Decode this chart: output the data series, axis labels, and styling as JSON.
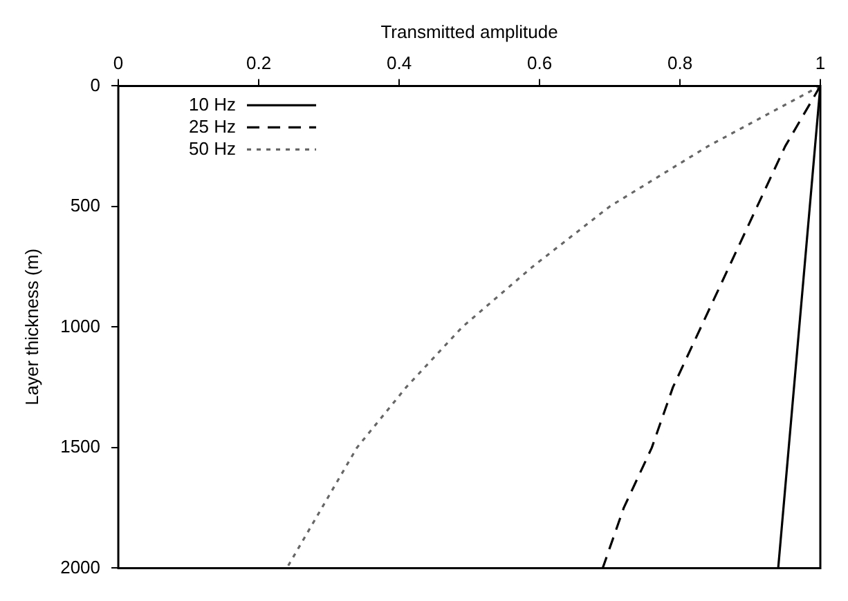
{
  "chart_data": {
    "type": "line",
    "xlabel": "Transmitted amplitude",
    "ylabel": "Layer thickness (m)",
    "xlim": [
      0,
      1
    ],
    "xticks": [
      0,
      0.2,
      0.4,
      0.6,
      0.8,
      1
    ],
    "ylim": [
      2000,
      0
    ],
    "yticks": [
      0,
      500,
      1000,
      1500,
      2000
    ],
    "grid": false,
    "legend": "top left",
    "marker": "none",
    "series": [
      {
        "name": "10 Hz",
        "color": "#000000",
        "line_style": "solid",
        "x": [
          1,
          0.94
        ],
        "values": [
          0,
          2000
        ]
      },
      {
        "name": "25 Hz",
        "color": "#000000",
        "line_style": "dashed",
        "x": [
          1,
          0.95,
          0.91,
          0.87,
          0.83,
          0.79,
          0.76,
          0.72,
          0.69
        ],
        "values": [
          0,
          250,
          500,
          750,
          1000,
          1250,
          1500,
          1750,
          2000
        ]
      },
      {
        "name": "50 Hz",
        "color": "#666666",
        "line_style": "dotted",
        "x": [
          1,
          0.84,
          0.7,
          0.59,
          0.49,
          0.41,
          0.34,
          0.29,
          0.24
        ],
        "values": [
          0,
          250,
          500,
          750,
          1000,
          1250,
          1500,
          1750,
          2000
        ]
      }
    ]
  }
}
